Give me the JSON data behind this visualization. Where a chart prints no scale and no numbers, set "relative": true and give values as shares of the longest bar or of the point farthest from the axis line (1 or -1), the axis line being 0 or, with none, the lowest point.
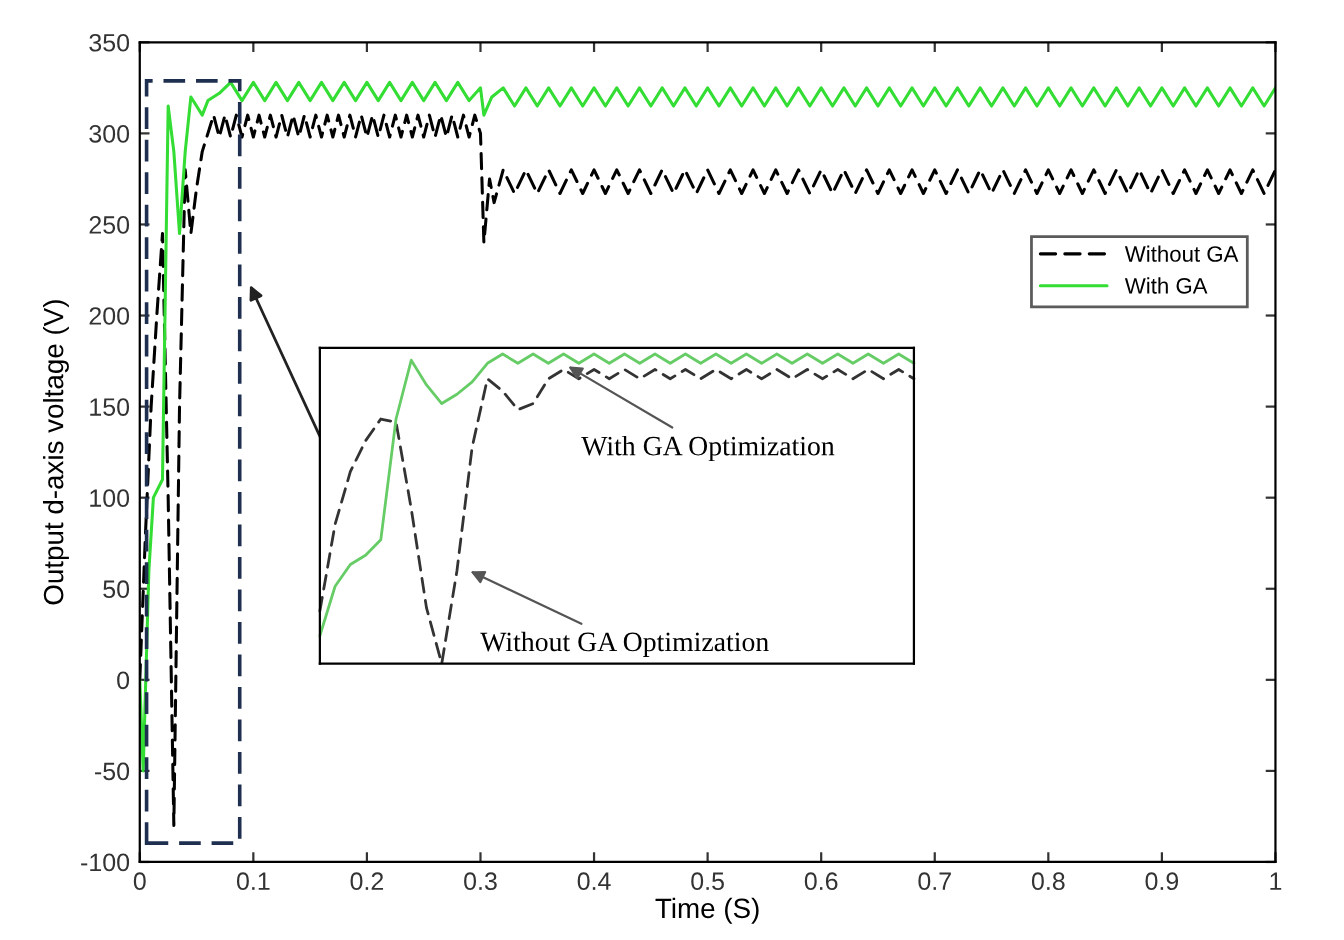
{
  "chart_data": [
    {
      "type": "line",
      "xlabel": "Time (S)",
      "ylabel": "Output d-axis voltage (V)",
      "xlim": [
        0,
        1
      ],
      "ylim": [
        -100,
        350
      ],
      "xticks": [
        0,
        0.1,
        0.2,
        0.3,
        0.4,
        0.5,
        0.6,
        0.7,
        0.8,
        0.9,
        1
      ],
      "yticks": [
        -100,
        -50,
        0,
        50,
        100,
        150,
        200,
        250,
        300,
        350
      ],
      "grid": false,
      "legend": "right",
      "series": [
        {
          "name": "Without GA",
          "color": "#000000",
          "line_style": "dashed",
          "x": [
            0,
            0.005,
            0.01,
            0.015,
            0.02,
            0.025,
            0.03,
            0.035,
            0.04,
            0.045,
            0.05,
            0.055,
            0.06,
            0.065,
            0.07,
            0.075,
            0.08,
            0.085,
            0.09,
            0.095,
            0.1,
            0.105,
            0.11,
            0.115,
            0.12,
            0.125,
            0.13,
            0.135,
            0.14,
            0.145,
            0.15,
            0.155,
            0.16,
            0.165,
            0.17,
            0.175,
            0.18,
            0.185,
            0.19,
            0.195,
            0.2,
            0.205,
            0.21,
            0.215,
            0.22,
            0.225,
            0.23,
            0.235,
            0.24,
            0.245,
            0.25,
            0.255,
            0.26,
            0.265,
            0.27,
            0.275,
            0.28,
            0.285,
            0.29,
            0.295,
            0.3,
            0.303,
            0.308,
            0.312,
            0.32,
            0.33,
            0.34,
            0.35,
            0.36,
            0.37,
            0.38,
            0.39,
            0.4,
            0.41,
            0.42,
            0.43,
            0.44,
            0.45,
            0.46,
            0.47,
            0.48,
            0.49,
            0.5,
            0.51,
            0.52,
            0.53,
            0.54,
            0.55,
            0.56,
            0.57,
            0.58,
            0.59,
            0.6,
            0.61,
            0.62,
            0.63,
            0.64,
            0.65,
            0.66,
            0.67,
            0.68,
            0.69,
            0.7,
            0.71,
            0.72,
            0.73,
            0.74,
            0.75,
            0.76,
            0.77,
            0.78,
            0.79,
            0.8,
            0.81,
            0.82,
            0.83,
            0.84,
            0.85,
            0.86,
            0.87,
            0.88,
            0.89,
            0.9,
            0.91,
            0.92,
            0.93,
            0.94,
            0.95,
            0.96,
            0.97,
            0.98,
            0.99,
            1.0
          ],
          "values": [
            0,
            80,
            150,
            200,
            245,
            100,
            -80,
            150,
            280,
            245,
            270,
            290,
            300,
            310,
            298,
            310,
            298,
            310,
            298,
            310,
            298,
            310,
            298,
            310,
            298,
            310,
            298,
            310,
            298,
            310,
            298,
            310,
            298,
            310,
            298,
            310,
            298,
            310,
            298,
            310,
            298,
            310,
            298,
            310,
            298,
            310,
            298,
            310,
            298,
            310,
            298,
            310,
            298,
            310,
            298,
            310,
            298,
            310,
            298,
            310,
            300,
            240,
            275,
            262,
            280,
            267,
            280,
            267,
            280,
            267,
            280,
            267,
            280,
            267,
            280,
            267,
            280,
            267,
            280,
            267,
            280,
            267,
            280,
            267,
            280,
            267,
            280,
            267,
            280,
            267,
            280,
            267,
            280,
            267,
            280,
            267,
            280,
            267,
            280,
            267,
            280,
            267,
            280,
            267,
            280,
            267,
            280,
            267,
            280,
            267,
            280,
            267,
            280,
            267,
            280,
            267,
            280,
            267,
            280,
            267,
            280,
            267,
            280,
            267,
            280,
            267,
            280,
            267,
            280,
            267,
            280,
            267,
            280
          ]
        },
        {
          "name": "With GA",
          "color": "#33dd33",
          "line_style": "solid",
          "x": [
            0,
            0.003,
            0.008,
            0.012,
            0.02,
            0.025,
            0.03,
            0.035,
            0.04,
            0.045,
            0.05,
            0.055,
            0.06,
            0.07,
            0.08,
            0.09,
            0.1,
            0.11,
            0.12,
            0.13,
            0.14,
            0.15,
            0.16,
            0.17,
            0.18,
            0.19,
            0.2,
            0.21,
            0.22,
            0.23,
            0.24,
            0.25,
            0.26,
            0.27,
            0.28,
            0.29,
            0.3,
            0.303,
            0.31,
            0.32,
            0.33,
            0.34,
            0.35,
            0.36,
            0.37,
            0.38,
            0.39,
            0.4,
            0.41,
            0.42,
            0.43,
            0.44,
            0.45,
            0.46,
            0.47,
            0.48,
            0.49,
            0.5,
            0.51,
            0.52,
            0.53,
            0.54,
            0.55,
            0.56,
            0.57,
            0.58,
            0.59,
            0.6,
            0.61,
            0.62,
            0.63,
            0.64,
            0.65,
            0.66,
            0.67,
            0.68,
            0.69,
            0.7,
            0.71,
            0.72,
            0.73,
            0.74,
            0.75,
            0.76,
            0.77,
            0.78,
            0.79,
            0.8,
            0.81,
            0.82,
            0.83,
            0.84,
            0.85,
            0.86,
            0.87,
            0.88,
            0.89,
            0.9,
            0.91,
            0.92,
            0.93,
            0.94,
            0.95,
            0.96,
            0.97,
            0.98,
            0.99,
            1.0
          ],
          "values": [
            0,
            -50,
            60,
            100,
            110,
            315,
            290,
            245,
            290,
            320,
            315,
            310,
            318,
            322,
            328,
            318,
            328,
            318,
            328,
            318,
            328,
            318,
            328,
            318,
            328,
            318,
            328,
            318,
            328,
            318,
            328,
            318,
            328,
            318,
            328,
            318,
            325,
            310,
            320,
            325,
            315,
            325,
            315,
            325,
            315,
            325,
            315,
            325,
            315,
            325,
            315,
            325,
            315,
            325,
            315,
            325,
            315,
            325,
            315,
            325,
            315,
            325,
            315,
            325,
            315,
            325,
            315,
            325,
            315,
            325,
            315,
            325,
            315,
            325,
            315,
            325,
            315,
            325,
            315,
            325,
            315,
            325,
            315,
            325,
            315,
            325,
            315,
            325,
            315,
            325,
            315,
            325,
            315,
            325,
            315,
            325,
            315,
            325,
            315,
            325,
            315,
            325,
            315,
            325,
            315,
            325,
            315,
            325
          ]
        }
      ]
    },
    {
      "type": "line",
      "relative": true,
      "categories": [
        null,
        null,
        null,
        null,
        null,
        null,
        null,
        null,
        null,
        null,
        null,
        null,
        null,
        null,
        null,
        null,
        null,
        null,
        null,
        null,
        null,
        null,
        null,
        null,
        null,
        null,
        null,
        null,
        null,
        null,
        null,
        null,
        null,
        null,
        null,
        null,
        null,
        null,
        null,
        null
      ],
      "annotations": [
        "With GA Optimization",
        "Without GA Optimization"
      ],
      "series": [
        {
          "color": "#333333",
          "line_style": "dashed",
          "values": [
            0.17,
            0.45,
            0.62,
            0.72,
            0.79,
            0.78,
            0.5,
            0.18,
            0,
            0.3,
            0.7,
            0.92,
            0.88,
            0.82,
            0.84,
            0.92,
            0.95,
            0.92,
            0.95,
            0.92,
            0.95,
            0.92,
            0.95,
            0.92,
            0.95,
            0.92,
            0.95,
            0.92,
            0.95,
            0.92,
            0.95,
            0.92,
            0.95,
            0.92,
            0.95,
            0.92,
            0.95,
            0.92,
            0.95,
            0.92
          ]
        },
        {
          "color": "#66cc66",
          "line_style": "solid",
          "values": [
            0.09,
            0.25,
            0.32,
            0.35,
            0.4,
            0.79,
            0.98,
            0.9,
            0.84,
            0.87,
            0.91,
            0.97,
            1.0,
            0.97,
            1.0,
            0.97,
            1.0,
            0.97,
            1.0,
            0.97,
            1.0,
            0.97,
            1.0,
            0.97,
            1.0,
            0.97,
            1.0,
            0.97,
            1.0,
            0.97,
            1.0,
            0.97,
            1.0,
            0.97,
            1.0,
            0.97,
            1.0,
            0.97,
            1.0,
            0.97
          ]
        }
      ]
    }
  ]
}
